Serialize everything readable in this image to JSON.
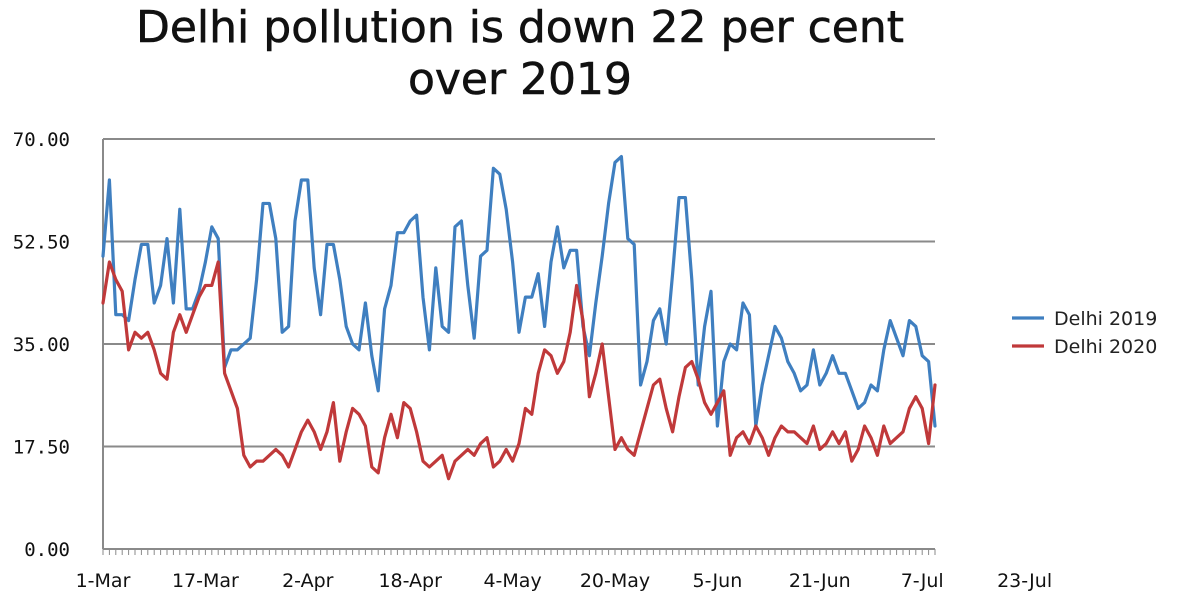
{
  "chart_data": {
    "type": "line",
    "title": [
      "Delhi pollution is down 22 per cent",
      "over 2019"
    ],
    "xlabel": "",
    "ylabel": "",
    "ylim": [
      0,
      70
    ],
    "y_ticks": [
      "0.00",
      "17.50",
      "35.00",
      "52.50",
      "70.00"
    ],
    "x_tick_labels": [
      "1-Mar",
      "17-Mar",
      "2-Apr",
      "18-Apr",
      "4-May",
      "20-May",
      "5-Jun",
      "21-Jun",
      "7-Jul",
      "23-Jul"
    ],
    "x_start_date": "1-Mar",
    "grid": "horizontal",
    "legend_position": "right",
    "series": [
      {
        "name": "Delhi 2019",
        "color": "#3f7fc0",
        "values": [
          50,
          63,
          40,
          40,
          39,
          46,
          52,
          52,
          42,
          45,
          53,
          42,
          58,
          41,
          41,
          44,
          49,
          55,
          53,
          31,
          34,
          34,
          35,
          36,
          46,
          59,
          59,
          53,
          37,
          38,
          56,
          63,
          63,
          48,
          40,
          52,
          52,
          46,
          38,
          35,
          34,
          42,
          33,
          27,
          41,
          45,
          54,
          54,
          56,
          57,
          43,
          34,
          48,
          38,
          37,
          55,
          56,
          45,
          36,
          50,
          51,
          65,
          64,
          58,
          49,
          37,
          43,
          43,
          47,
          38,
          49,
          55,
          48,
          51,
          51,
          38,
          33,
          42,
          50,
          59,
          66,
          67,
          53,
          52,
          28,
          32,
          39,
          41,
          35,
          47,
          60,
          60,
          46,
          28,
          38,
          44,
          21,
          32,
          35,
          34,
          42,
          40,
          21,
          28,
          33,
          38,
          36,
          32,
          30,
          27,
          28,
          34,
          28,
          30,
          33,
          30,
          30,
          27,
          24,
          25,
          28,
          27,
          34,
          39,
          36,
          33,
          39,
          38,
          33,
          32,
          21
        ]
      },
      {
        "name": "Delhi 2020",
        "color": "#c0393a",
        "values": [
          42,
          49,
          46,
          44,
          34,
          37,
          36,
          37,
          34,
          30,
          29,
          37,
          40,
          37,
          40,
          43,
          45,
          45,
          49,
          30,
          27,
          24,
          16,
          14,
          15,
          15,
          16,
          17,
          16,
          14,
          17,
          20,
          22,
          20,
          17,
          20,
          25,
          15,
          20,
          24,
          23,
          21,
          14,
          13,
          19,
          23,
          19,
          25,
          24,
          20,
          15,
          14,
          15,
          16,
          12,
          15,
          16,
          17,
          16,
          18,
          19,
          14,
          15,
          17,
          15,
          18,
          24,
          23,
          30,
          34,
          33,
          30,
          32,
          37,
          45,
          39,
          26,
          30,
          35,
          26,
          17,
          19,
          17,
          16,
          20,
          24,
          28,
          29,
          24,
          20,
          26,
          31,
          32,
          29,
          25,
          23,
          25,
          27,
          16,
          19,
          20,
          18,
          21,
          19,
          16,
          19,
          21,
          20,
          20,
          19,
          18,
          21,
          17,
          18,
          20,
          18,
          20,
          15,
          17,
          21,
          19,
          16,
          21,
          18,
          19,
          20,
          24,
          26,
          24,
          18,
          28
        ]
      }
    ]
  }
}
